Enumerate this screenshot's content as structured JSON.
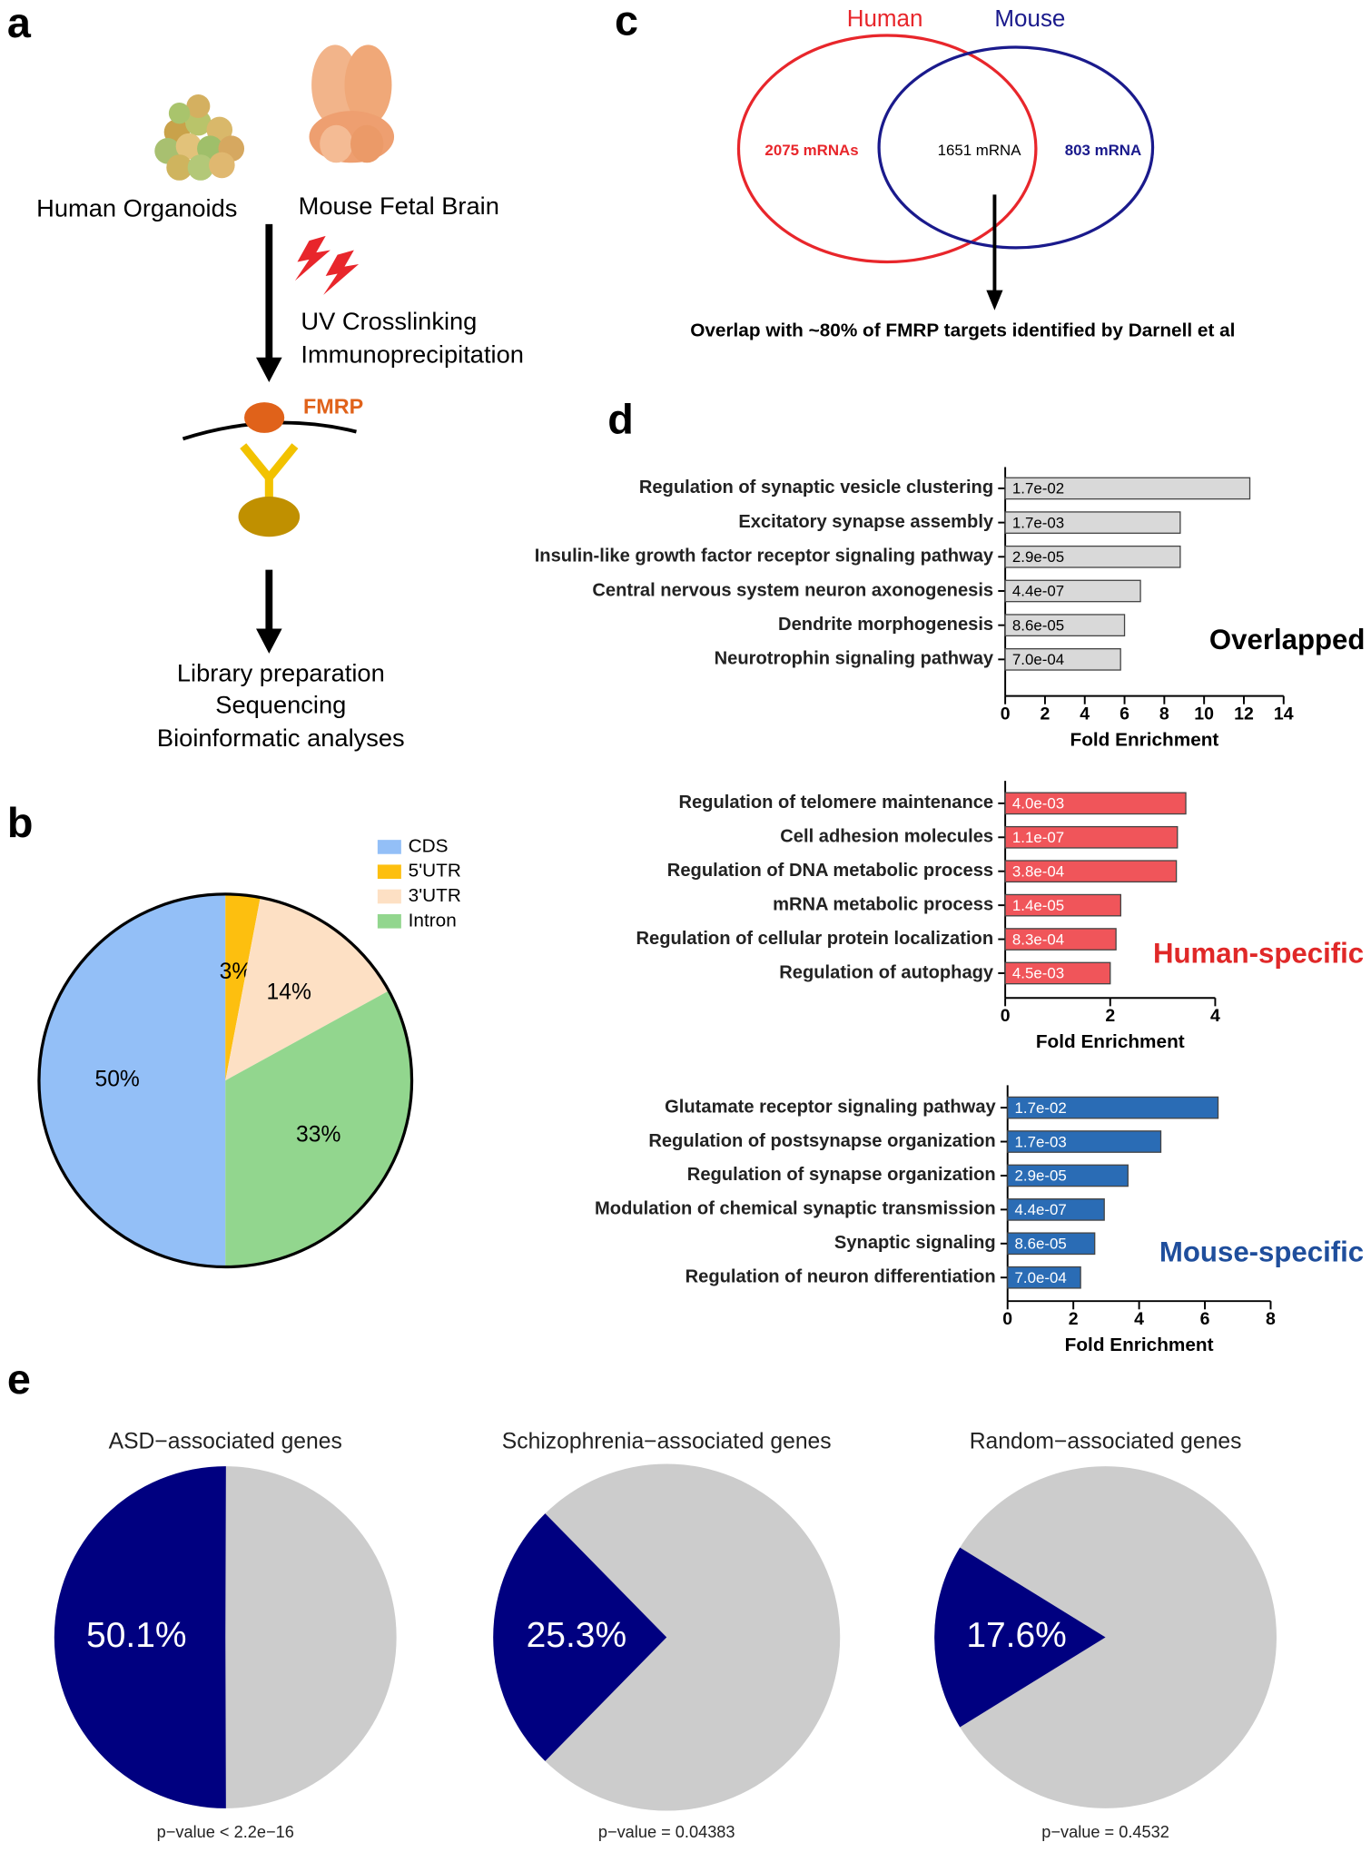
{
  "panel_labels": [
    "a",
    "b",
    "c",
    "d",
    "e"
  ],
  "workflow": {
    "sources": [
      "Human Organoids",
      "Mouse Fetal Brain"
    ],
    "steps": [
      "UV Crosslinking",
      "Immunoprecipitation"
    ],
    "protein": "FMRP",
    "outputs": [
      "Library preparation",
      "Sequencing",
      "Bioinformatic analyses"
    ]
  },
  "venn": {
    "sets": [
      {
        "name": "Human",
        "color": "#e8262b",
        "count_label": "2075 mRNAs"
      },
      {
        "name": "Mouse",
        "color": "#1a1a8c",
        "count_label": "803 mRNA"
      }
    ],
    "overlap_label": "1651 mRNA",
    "note": "Overlap with ~80% of FMRP targets identified by Darnell et al"
  },
  "chart_data": [
    {
      "type": "pie",
      "categories": [
        "CDS",
        "5'UTR",
        "3'UTR",
        "Intron"
      ],
      "values": [
        50,
        3,
        14,
        33
      ],
      "value_labels": [
        "50%",
        "3%",
        "14%",
        "33%"
      ],
      "colors": [
        "#93bff7",
        "#fdbf0f",
        "#fde0c4",
        "#92d68e"
      ],
      "legend": "top-right"
    },
    {
      "type": "bar",
      "orientation": "horizontal",
      "label": "Overlapped",
      "label_color": "#000000",
      "categories": [
        "Regulation of synaptic vesicle clustering",
        "Excitatory synapse assembly",
        "Insulin-like growth factor receptor signaling pathway",
        "Central nervous system neuron axonogenesis",
        "Dendrite morphogenesis",
        "Neurotrophin signaling pathway"
      ],
      "values": [
        12.3,
        8.8,
        8.8,
        6.8,
        6.0,
        5.8
      ],
      "p_values": [
        "1.7e-02",
        "1.7e-03",
        "2.9e-05",
        "4.4e-07",
        "8.6e-05",
        "7.0e-04"
      ],
      "color": "#d9d9d9",
      "text_color": "#000000",
      "xlim": [
        0,
        14
      ],
      "xticks": [
        0,
        2,
        4,
        6,
        8,
        10,
        12,
        14
      ],
      "xlabel": "Fold Enrichment"
    },
    {
      "type": "bar",
      "orientation": "horizontal",
      "label": "Human-specific",
      "label_color": "#e02828",
      "categories": [
        "Regulation of telomere maintenance",
        "Cell adhesion molecules",
        "Regulation of DNA metabolic process",
        "mRNA metabolic process",
        "Regulation of cellular protein localization",
        "Regulation of autophagy"
      ],
      "values": [
        3.44,
        3.28,
        3.26,
        2.2,
        2.11,
        2.0
      ],
      "p_values": [
        "4.0e-03",
        "1.1e-07",
        "3.8e-04",
        "1.4e-05",
        "8.3e-04",
        "4.5e-03"
      ],
      "color": "#f0555a",
      "text_color": "#ffffff",
      "xlim": [
        0,
        4
      ],
      "xticks": [
        0,
        2,
        4
      ],
      "xlabel": "Fold Enrichment"
    },
    {
      "type": "bar",
      "orientation": "horizontal",
      "label": "Mouse-specific",
      "label_color": "#1f4e9c",
      "categories": [
        "Glutamate receptor signaling pathway",
        "Regulation of postsynapse organization",
        "Regulation of synapse organization",
        "Modulation of chemical synaptic transmission",
        "Synaptic signaling",
        "Regulation of neuron differentiation"
      ],
      "values": [
        6.4,
        4.66,
        3.66,
        2.94,
        2.65,
        2.22
      ],
      "p_values": [
        "1.7e-02",
        "1.7e-03",
        "2.9e-05",
        "4.4e-07",
        "8.6e-05",
        "7.0e-04"
      ],
      "color": "#2a6cb5",
      "text_color": "#ffffff",
      "xlim": [
        0,
        8
      ],
      "xticks": [
        0,
        2,
        4,
        6,
        8
      ],
      "xlabel": "Fold Enrichment"
    },
    {
      "type": "pie",
      "title": "ASD−associated genes",
      "values": [
        50.1
      ],
      "value_labels": [
        "50.1%"
      ],
      "color": "#000080",
      "rest_color": "#cccccc",
      "note": "p−value < 2.2e−16"
    },
    {
      "type": "pie",
      "title": "Schizophrenia−associated genes",
      "values": [
        25.3
      ],
      "value_labels": [
        "25.3%"
      ],
      "color": "#000080",
      "rest_color": "#cccccc",
      "note": "p−value = 0.04383"
    },
    {
      "type": "pie",
      "title": "Random−associated genes",
      "values": [
        17.6
      ],
      "value_labels": [
        "17.6%"
      ],
      "color": "#000080",
      "rest_color": "#cccccc",
      "note": "p−value = 0.4532"
    }
  ]
}
